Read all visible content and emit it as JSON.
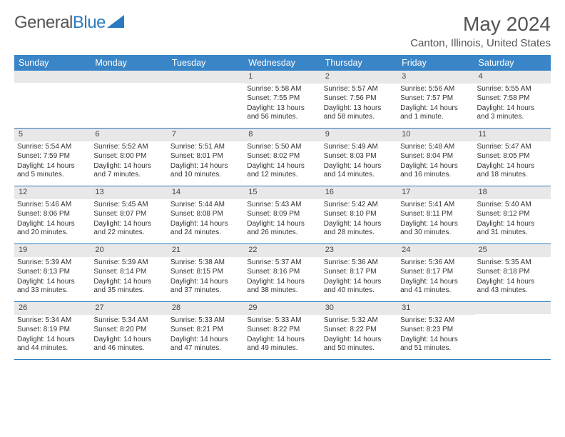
{
  "brand": {
    "part1": "General",
    "part2": "Blue"
  },
  "title": "May 2024",
  "location": "Canton, Illinois, United States",
  "colors": {
    "header_bg": "#3a85c7",
    "divider": "#2a7bbf",
    "daynum_bg": "#e8e8e8",
    "text": "#333333",
    "muted": "#555555"
  },
  "day_names": [
    "Sunday",
    "Monday",
    "Tuesday",
    "Wednesday",
    "Thursday",
    "Friday",
    "Saturday"
  ],
  "weeks": [
    [
      null,
      null,
      null,
      {
        "n": "1",
        "sr": "Sunrise: 5:58 AM",
        "ss": "Sunset: 7:55 PM",
        "dl": "Daylight: 13 hours and 56 minutes."
      },
      {
        "n": "2",
        "sr": "Sunrise: 5:57 AM",
        "ss": "Sunset: 7:56 PM",
        "dl": "Daylight: 13 hours and 58 minutes."
      },
      {
        "n": "3",
        "sr": "Sunrise: 5:56 AM",
        "ss": "Sunset: 7:57 PM",
        "dl": "Daylight: 14 hours and 1 minute."
      },
      {
        "n": "4",
        "sr": "Sunrise: 5:55 AM",
        "ss": "Sunset: 7:58 PM",
        "dl": "Daylight: 14 hours and 3 minutes."
      }
    ],
    [
      {
        "n": "5",
        "sr": "Sunrise: 5:54 AM",
        "ss": "Sunset: 7:59 PM",
        "dl": "Daylight: 14 hours and 5 minutes."
      },
      {
        "n": "6",
        "sr": "Sunrise: 5:52 AM",
        "ss": "Sunset: 8:00 PM",
        "dl": "Daylight: 14 hours and 7 minutes."
      },
      {
        "n": "7",
        "sr": "Sunrise: 5:51 AM",
        "ss": "Sunset: 8:01 PM",
        "dl": "Daylight: 14 hours and 10 minutes."
      },
      {
        "n": "8",
        "sr": "Sunrise: 5:50 AM",
        "ss": "Sunset: 8:02 PM",
        "dl": "Daylight: 14 hours and 12 minutes."
      },
      {
        "n": "9",
        "sr": "Sunrise: 5:49 AM",
        "ss": "Sunset: 8:03 PM",
        "dl": "Daylight: 14 hours and 14 minutes."
      },
      {
        "n": "10",
        "sr": "Sunrise: 5:48 AM",
        "ss": "Sunset: 8:04 PM",
        "dl": "Daylight: 14 hours and 16 minutes."
      },
      {
        "n": "11",
        "sr": "Sunrise: 5:47 AM",
        "ss": "Sunset: 8:05 PM",
        "dl": "Daylight: 14 hours and 18 minutes."
      }
    ],
    [
      {
        "n": "12",
        "sr": "Sunrise: 5:46 AM",
        "ss": "Sunset: 8:06 PM",
        "dl": "Daylight: 14 hours and 20 minutes."
      },
      {
        "n": "13",
        "sr": "Sunrise: 5:45 AM",
        "ss": "Sunset: 8:07 PM",
        "dl": "Daylight: 14 hours and 22 minutes."
      },
      {
        "n": "14",
        "sr": "Sunrise: 5:44 AM",
        "ss": "Sunset: 8:08 PM",
        "dl": "Daylight: 14 hours and 24 minutes."
      },
      {
        "n": "15",
        "sr": "Sunrise: 5:43 AM",
        "ss": "Sunset: 8:09 PM",
        "dl": "Daylight: 14 hours and 26 minutes."
      },
      {
        "n": "16",
        "sr": "Sunrise: 5:42 AM",
        "ss": "Sunset: 8:10 PM",
        "dl": "Daylight: 14 hours and 28 minutes."
      },
      {
        "n": "17",
        "sr": "Sunrise: 5:41 AM",
        "ss": "Sunset: 8:11 PM",
        "dl": "Daylight: 14 hours and 30 minutes."
      },
      {
        "n": "18",
        "sr": "Sunrise: 5:40 AM",
        "ss": "Sunset: 8:12 PM",
        "dl": "Daylight: 14 hours and 31 minutes."
      }
    ],
    [
      {
        "n": "19",
        "sr": "Sunrise: 5:39 AM",
        "ss": "Sunset: 8:13 PM",
        "dl": "Daylight: 14 hours and 33 minutes."
      },
      {
        "n": "20",
        "sr": "Sunrise: 5:39 AM",
        "ss": "Sunset: 8:14 PM",
        "dl": "Daylight: 14 hours and 35 minutes."
      },
      {
        "n": "21",
        "sr": "Sunrise: 5:38 AM",
        "ss": "Sunset: 8:15 PM",
        "dl": "Daylight: 14 hours and 37 minutes."
      },
      {
        "n": "22",
        "sr": "Sunrise: 5:37 AM",
        "ss": "Sunset: 8:16 PM",
        "dl": "Daylight: 14 hours and 38 minutes."
      },
      {
        "n": "23",
        "sr": "Sunrise: 5:36 AM",
        "ss": "Sunset: 8:17 PM",
        "dl": "Daylight: 14 hours and 40 minutes."
      },
      {
        "n": "24",
        "sr": "Sunrise: 5:36 AM",
        "ss": "Sunset: 8:17 PM",
        "dl": "Daylight: 14 hours and 41 minutes."
      },
      {
        "n": "25",
        "sr": "Sunrise: 5:35 AM",
        "ss": "Sunset: 8:18 PM",
        "dl": "Daylight: 14 hours and 43 minutes."
      }
    ],
    [
      {
        "n": "26",
        "sr": "Sunrise: 5:34 AM",
        "ss": "Sunset: 8:19 PM",
        "dl": "Daylight: 14 hours and 44 minutes."
      },
      {
        "n": "27",
        "sr": "Sunrise: 5:34 AM",
        "ss": "Sunset: 8:20 PM",
        "dl": "Daylight: 14 hours and 46 minutes."
      },
      {
        "n": "28",
        "sr": "Sunrise: 5:33 AM",
        "ss": "Sunset: 8:21 PM",
        "dl": "Daylight: 14 hours and 47 minutes."
      },
      {
        "n": "29",
        "sr": "Sunrise: 5:33 AM",
        "ss": "Sunset: 8:22 PM",
        "dl": "Daylight: 14 hours and 49 minutes."
      },
      {
        "n": "30",
        "sr": "Sunrise: 5:32 AM",
        "ss": "Sunset: 8:22 PM",
        "dl": "Daylight: 14 hours and 50 minutes."
      },
      {
        "n": "31",
        "sr": "Sunrise: 5:32 AM",
        "ss": "Sunset: 8:23 PM",
        "dl": "Daylight: 14 hours and 51 minutes."
      },
      null
    ]
  ]
}
